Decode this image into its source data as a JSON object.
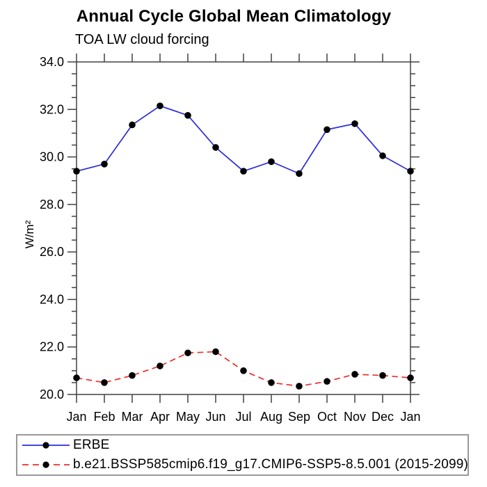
{
  "chart_data": {
    "type": "line",
    "title": "Annual Cycle Global Mean Climatology",
    "subtitle": "TOA LW cloud forcing",
    "xlabel": "",
    "ylabel": "W/m²",
    "categories": [
      "Jan",
      "Feb",
      "Mar",
      "Apr",
      "May",
      "Jun",
      "Jul",
      "Aug",
      "Sep",
      "Oct",
      "Nov",
      "Dec",
      "Jan"
    ],
    "ylim": [
      20.0,
      34.0
    ],
    "ytick_step": 2.0,
    "ytick_minor_step": 0.5,
    "ytick_labels": [
      "34.0",
      "32.0",
      "30.0",
      "28.0",
      "26.0",
      "24.0",
      "22.0",
      "20.0"
    ],
    "grid": false,
    "legend_position": "bottom-left-box",
    "marker": "filled-black-circle",
    "axis_color": "#404040",
    "series": [
      {
        "name": "ERBE",
        "color": "#2828dc",
        "line_style": "solid",
        "marker_color": "#000000",
        "values": [
          29.4,
          29.7,
          31.35,
          32.15,
          31.75,
          30.4,
          29.4,
          29.8,
          29.3,
          31.15,
          31.4,
          30.05,
          29.4
        ]
      },
      {
        "name": "b.e21.BSSP585cmip6.f19_g17.CMIP6-SSP5-8.5.001 (2015-2099)",
        "color": "#ee2c2c",
        "line_style": "dashed",
        "marker_color": "#000000",
        "values": [
          20.7,
          20.5,
          20.8,
          21.2,
          21.75,
          21.8,
          21.0,
          20.5,
          20.35,
          20.55,
          20.85,
          20.8,
          20.7
        ]
      }
    ]
  }
}
